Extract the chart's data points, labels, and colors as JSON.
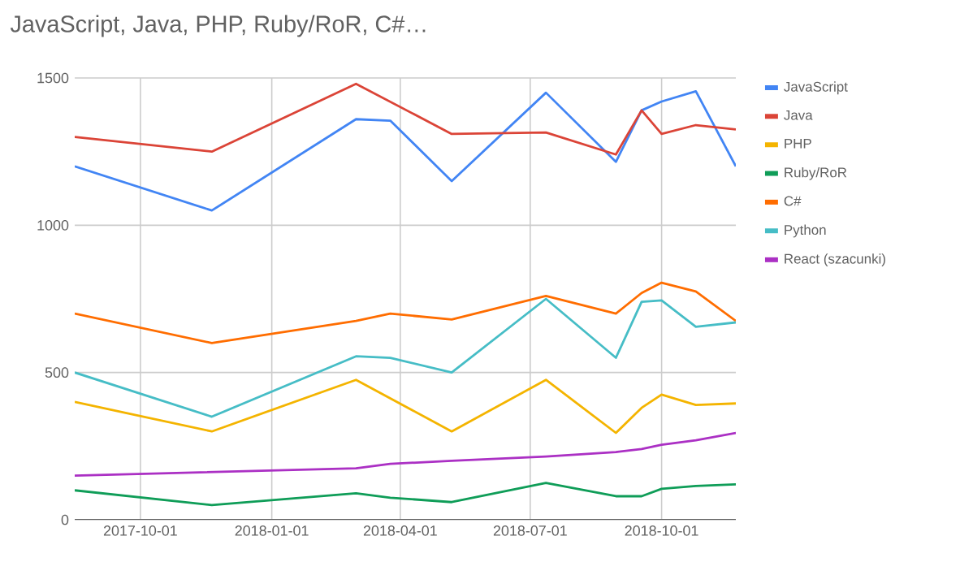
{
  "chart_data": {
    "type": "line",
    "title": "JavaScript, Java, PHP, Ruby/RoR, C#…",
    "xlim": [
      "2017-08-16",
      "2018-11-22"
    ],
    "ylim": [
      0,
      1500
    ],
    "xticks": [
      "2017-10-01",
      "2018-01-01",
      "2018-04-01",
      "2018-07-01",
      "2018-10-01"
    ],
    "yticks": [
      0,
      500,
      1000,
      1500
    ],
    "grid": true,
    "legend": "right",
    "line_style": "solid",
    "marker": "none",
    "series": [
      {
        "name": "JavaScript",
        "color": "#4285f4",
        "x": [
          "2017-08-16",
          "2017-11-20",
          "2018-03-01",
          "2018-03-25",
          "2018-05-07",
          "2018-07-12",
          "2018-08-30",
          "2018-09-17",
          "2018-10-01",
          "2018-10-25",
          "2018-11-22"
        ],
        "values": [
          1200,
          1050,
          1360,
          1355,
          1150,
          1450,
          1215,
          1390,
          1420,
          1455,
          1200
        ]
      },
      {
        "name": "Java",
        "color": "#db4437",
        "x": [
          "2017-08-16",
          "2017-11-20",
          "2018-03-01",
          "2018-05-07",
          "2018-07-12",
          "2018-08-30",
          "2018-09-17",
          "2018-10-01",
          "2018-10-25",
          "2018-11-22"
        ],
        "values": [
          1300,
          1250,
          1480,
          1310,
          1315,
          1240,
          1390,
          1310,
          1340,
          1325
        ]
      },
      {
        "name": "PHP",
        "color": "#f4b400",
        "x": [
          "2017-08-16",
          "2017-11-20",
          "2018-03-01",
          "2018-05-07",
          "2018-07-12",
          "2018-08-30",
          "2018-09-17",
          "2018-10-01",
          "2018-10-25",
          "2018-11-22"
        ],
        "values": [
          400,
          300,
          475,
          300,
          475,
          295,
          380,
          425,
          390,
          395
        ]
      },
      {
        "name": "Ruby/RoR",
        "color": "#0f9d58",
        "x": [
          "2017-08-16",
          "2017-11-20",
          "2018-03-01",
          "2018-03-25",
          "2018-05-07",
          "2018-07-12",
          "2018-08-30",
          "2018-09-17",
          "2018-10-01",
          "2018-10-25",
          "2018-11-22"
        ],
        "values": [
          100,
          50,
          90,
          75,
          60,
          125,
          80,
          80,
          105,
          115,
          120
        ]
      },
      {
        "name": "C#",
        "color": "#ff6d00",
        "x": [
          "2017-08-16",
          "2017-11-20",
          "2018-03-01",
          "2018-03-25",
          "2018-05-07",
          "2018-07-12",
          "2018-08-30",
          "2018-09-17",
          "2018-10-01",
          "2018-10-25",
          "2018-11-22"
        ],
        "values": [
          700,
          600,
          675,
          700,
          680,
          760,
          700,
          770,
          805,
          775,
          675
        ]
      },
      {
        "name": "Python",
        "color": "#46bdc6",
        "x": [
          "2017-08-16",
          "2017-11-20",
          "2018-03-01",
          "2018-03-25",
          "2018-05-07",
          "2018-07-12",
          "2018-08-30",
          "2018-09-17",
          "2018-10-01",
          "2018-10-25",
          "2018-11-22"
        ],
        "values": [
          500,
          350,
          555,
          550,
          500,
          750,
          550,
          740,
          745,
          655,
          670
        ]
      },
      {
        "name": "React (szacunki)",
        "color": "#ab30c4",
        "x": [
          "2017-08-16",
          "2018-03-01",
          "2018-03-25",
          "2018-05-07",
          "2018-07-12",
          "2018-08-30",
          "2018-09-17",
          "2018-10-01",
          "2018-10-25",
          "2018-11-22"
        ],
        "values": [
          150,
          175,
          190,
          200,
          215,
          230,
          240,
          255,
          270,
          295
        ]
      }
    ]
  }
}
